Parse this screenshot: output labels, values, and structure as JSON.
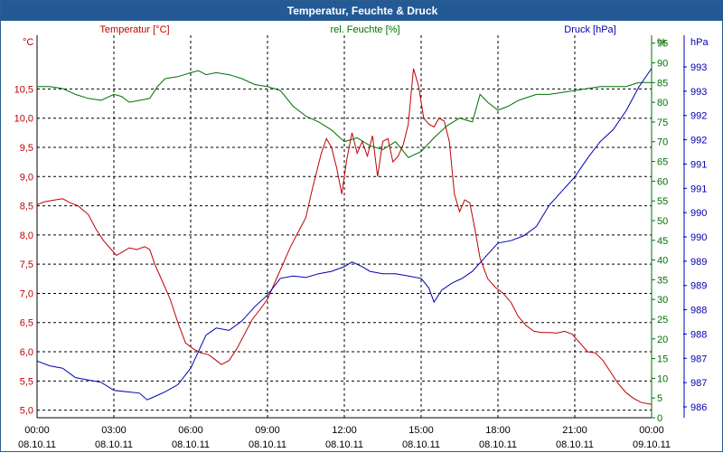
{
  "window": {
    "title": "Temperatur, Feuchte & Druck"
  },
  "chart_data": {
    "type": "line",
    "title": "Temperatur, Feuchte & Druck",
    "x": {
      "range_hours": [
        0,
        24
      ],
      "ticks": [
        {
          "h": 0,
          "time": "00:00",
          "date": "08.10.11"
        },
        {
          "h": 3,
          "time": "03:00",
          "date": "08.10.11"
        },
        {
          "h": 6,
          "time": "06:00",
          "date": "08.10.11"
        },
        {
          "h": 9,
          "time": "09:00",
          "date": "08.10.11"
        },
        {
          "h": 12,
          "time": "12:00",
          "date": "08.10.11"
        },
        {
          "h": 15,
          "time": "15:00",
          "date": "08.10.11"
        },
        {
          "h": 18,
          "time": "18:00",
          "date": "08.10.11"
        },
        {
          "h": 21,
          "time": "21:00",
          "date": "08.10.11"
        },
        {
          "h": 24,
          "time": "00:00",
          "date": "09.10.11"
        }
      ]
    },
    "axes": {
      "temperature": {
        "unit": "°C",
        "range": [
          4.87,
          11.42
        ],
        "ticks": [
          "5,0",
          "5,5",
          "6,0",
          "6,5",
          "7,0",
          "7,5",
          "8,0",
          "8,5",
          "9,0",
          "9,5",
          "10,0",
          "10,5"
        ]
      },
      "humidity": {
        "unit": "%",
        "range": [
          0,
          97
        ],
        "ticks": [
          "0",
          "5",
          "10",
          "15",
          "20",
          "25",
          "30",
          "35",
          "40",
          "45",
          "50",
          "55",
          "60",
          "65",
          "70",
          "75",
          "80",
          "85",
          "90",
          "95"
        ]
      },
      "pressure": {
        "unit": "hPa",
        "range": [
          986.0,
          994.1
        ],
        "ticks": [
          "986",
          "987",
          "987",
          "988",
          "988",
          "989",
          "989",
          "990",
          "990",
          "991",
          "991",
          "992",
          "992",
          "993",
          "993"
        ]
      }
    },
    "series": [
      {
        "name": "Temperatur [°C]",
        "color": "#c00000",
        "axis": "temperature",
        "points": [
          [
            0,
            8.52
          ],
          [
            0.3,
            8.57
          ],
          [
            0.7,
            8.6
          ],
          [
            1.0,
            8.62
          ],
          [
            1.3,
            8.55
          ],
          [
            1.6,
            8.5
          ],
          [
            2.0,
            8.35
          ],
          [
            2.3,
            8.1
          ],
          [
            2.6,
            7.9
          ],
          [
            2.9,
            7.75
          ],
          [
            3.1,
            7.65
          ],
          [
            3.3,
            7.7
          ],
          [
            3.6,
            7.78
          ],
          [
            3.9,
            7.75
          ],
          [
            4.2,
            7.8
          ],
          [
            4.4,
            7.75
          ],
          [
            4.6,
            7.5
          ],
          [
            4.9,
            7.2
          ],
          [
            5.2,
            6.9
          ],
          [
            5.5,
            6.5
          ],
          [
            5.8,
            6.15
          ],
          [
            6.1,
            6.05
          ],
          [
            6.4,
            5.98
          ],
          [
            6.7,
            5.95
          ],
          [
            7.0,
            5.85
          ],
          [
            7.2,
            5.78
          ],
          [
            7.5,
            5.85
          ],
          [
            7.8,
            6.05
          ],
          [
            8.1,
            6.3
          ],
          [
            8.4,
            6.55
          ],
          [
            8.7,
            6.72
          ],
          [
            9.0,
            6.9
          ],
          [
            9.3,
            7.2
          ],
          [
            9.6,
            7.5
          ],
          [
            9.9,
            7.8
          ],
          [
            10.2,
            8.05
          ],
          [
            10.5,
            8.3
          ],
          [
            10.7,
            8.7
          ],
          [
            10.9,
            9.05
          ],
          [
            11.1,
            9.4
          ],
          [
            11.3,
            9.65
          ],
          [
            11.5,
            9.5
          ],
          [
            11.7,
            9.15
          ],
          [
            11.9,
            8.7
          ],
          [
            12.1,
            9.3
          ],
          [
            12.3,
            9.75
          ],
          [
            12.5,
            9.4
          ],
          [
            12.7,
            9.6
          ],
          [
            12.9,
            9.35
          ],
          [
            13.1,
            9.7
          ],
          [
            13.3,
            9.0
          ],
          [
            13.5,
            9.6
          ],
          [
            13.7,
            9.65
          ],
          [
            13.9,
            9.25
          ],
          [
            14.1,
            9.35
          ],
          [
            14.3,
            9.55
          ],
          [
            14.5,
            9.9
          ],
          [
            14.7,
            10.85
          ],
          [
            14.9,
            10.55
          ],
          [
            15.1,
            10.0
          ],
          [
            15.3,
            9.9
          ],
          [
            15.5,
            9.85
          ],
          [
            15.7,
            10.0
          ],
          [
            15.9,
            9.95
          ],
          [
            16.1,
            9.6
          ],
          [
            16.3,
            8.7
          ],
          [
            16.5,
            8.4
          ],
          [
            16.7,
            8.6
          ],
          [
            16.9,
            8.55
          ],
          [
            17.1,
            8.1
          ],
          [
            17.3,
            7.6
          ],
          [
            17.6,
            7.25
          ],
          [
            17.9,
            7.1
          ],
          [
            18.2,
            7.0
          ],
          [
            18.5,
            6.85
          ],
          [
            18.8,
            6.6
          ],
          [
            19.1,
            6.45
          ],
          [
            19.4,
            6.35
          ],
          [
            19.7,
            6.33
          ],
          [
            20.0,
            6.33
          ],
          [
            20.3,
            6.32
          ],
          [
            20.6,
            6.35
          ],
          [
            20.9,
            6.3
          ],
          [
            21.2,
            6.15
          ],
          [
            21.5,
            6.0
          ],
          [
            21.8,
            5.98
          ],
          [
            22.1,
            5.85
          ],
          [
            22.4,
            5.65
          ],
          [
            22.7,
            5.45
          ],
          [
            23.0,
            5.3
          ],
          [
            23.3,
            5.2
          ],
          [
            23.6,
            5.13
          ],
          [
            24.0,
            5.1
          ]
        ]
      },
      {
        "name": "rel. Feuchte [%]",
        "color": "#007000",
        "axis": "humidity",
        "points": [
          [
            0,
            84
          ],
          [
            0.5,
            84
          ],
          [
            1.0,
            83.5
          ],
          [
            1.5,
            82
          ],
          [
            2.0,
            81
          ],
          [
            2.5,
            80.5
          ],
          [
            3.0,
            82
          ],
          [
            3.3,
            81.5
          ],
          [
            3.6,
            80
          ],
          [
            4.0,
            80.5
          ],
          [
            4.4,
            81
          ],
          [
            4.7,
            84
          ],
          [
            5.0,
            86
          ],
          [
            5.5,
            86.5
          ],
          [
            6.0,
            87.5
          ],
          [
            6.3,
            88
          ],
          [
            6.6,
            87
          ],
          [
            7.0,
            87.5
          ],
          [
            7.5,
            87
          ],
          [
            8.0,
            86
          ],
          [
            8.5,
            84.5
          ],
          [
            9.0,
            84
          ],
          [
            9.5,
            83
          ],
          [
            10.0,
            79
          ],
          [
            10.5,
            76.5
          ],
          [
            11.0,
            75
          ],
          [
            11.5,
            73
          ],
          [
            12.0,
            70
          ],
          [
            12.5,
            71
          ],
          [
            13.0,
            69
          ],
          [
            13.5,
            68
          ],
          [
            14.0,
            70
          ],
          [
            14.5,
            66
          ],
          [
            15.0,
            67.5
          ],
          [
            15.5,
            71
          ],
          [
            16.0,
            74
          ],
          [
            16.5,
            76
          ],
          [
            17.0,
            75
          ],
          [
            17.3,
            82
          ],
          [
            17.6,
            80
          ],
          [
            18.0,
            78
          ],
          [
            18.4,
            79
          ],
          [
            18.8,
            80.5
          ],
          [
            19.5,
            82
          ],
          [
            20.0,
            82
          ],
          [
            20.5,
            82.5
          ],
          [
            21.0,
            83
          ],
          [
            21.5,
            83.5
          ],
          [
            22.0,
            84
          ],
          [
            22.5,
            84
          ],
          [
            23.0,
            84
          ],
          [
            23.5,
            85
          ],
          [
            24.0,
            85
          ]
        ]
      },
      {
        "name": "Druck [hPa]",
        "color": "#0000b0",
        "axis": "pressure",
        "points": [
          [
            0,
            987.2
          ],
          [
            0.5,
            987.1
          ],
          [
            1.0,
            987.05
          ],
          [
            1.5,
            986.85
          ],
          [
            2.0,
            986.8
          ],
          [
            2.5,
            986.75
          ],
          [
            3.0,
            986.58
          ],
          [
            3.5,
            986.55
          ],
          [
            4.0,
            986.52
          ],
          [
            4.3,
            986.38
          ],
          [
            4.6,
            986.45
          ],
          [
            5.0,
            986.55
          ],
          [
            5.5,
            986.7
          ],
          [
            6.0,
            987.05
          ],
          [
            6.3,
            987.4
          ],
          [
            6.6,
            987.75
          ],
          [
            7.0,
            987.9
          ],
          [
            7.5,
            987.85
          ],
          [
            8.0,
            988.05
          ],
          [
            8.5,
            988.35
          ],
          [
            9.0,
            988.6
          ],
          [
            9.5,
            988.95
          ],
          [
            10.0,
            989.0
          ],
          [
            10.5,
            988.97
          ],
          [
            11.0,
            989.05
          ],
          [
            11.5,
            989.1
          ],
          [
            12.0,
            989.2
          ],
          [
            12.3,
            989.3
          ],
          [
            12.7,
            989.2
          ],
          [
            13.0,
            989.1
          ],
          [
            13.5,
            989.05
          ],
          [
            14.0,
            989.05
          ],
          [
            14.5,
            989.0
          ],
          [
            15.0,
            988.95
          ],
          [
            15.3,
            988.75
          ],
          [
            15.5,
            988.45
          ],
          [
            15.8,
            988.7
          ],
          [
            16.2,
            988.85
          ],
          [
            16.6,
            988.95
          ],
          [
            17.0,
            989.1
          ],
          [
            17.5,
            989.4
          ],
          [
            18.0,
            989.7
          ],
          [
            18.5,
            989.75
          ],
          [
            19.0,
            989.85
          ],
          [
            19.5,
            990.05
          ],
          [
            20.0,
            990.5
          ],
          [
            20.5,
            990.8
          ],
          [
            21.0,
            991.1
          ],
          [
            21.5,
            991.5
          ],
          [
            22.0,
            991.85
          ],
          [
            22.5,
            992.1
          ],
          [
            23.0,
            992.5
          ],
          [
            23.5,
            993.0
          ],
          [
            24.0,
            993.4
          ]
        ]
      }
    ],
    "grid": true
  }
}
